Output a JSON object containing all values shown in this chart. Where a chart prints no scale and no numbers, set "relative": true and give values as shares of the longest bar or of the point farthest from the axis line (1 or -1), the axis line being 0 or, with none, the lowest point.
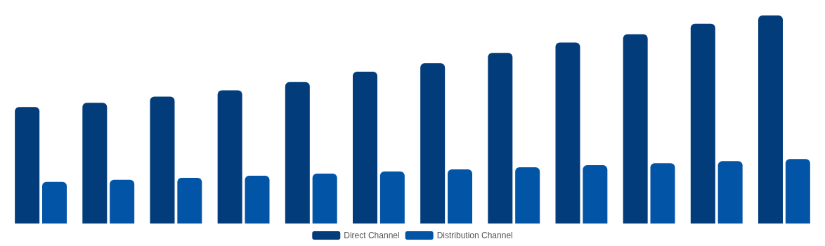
{
  "chart_data": {
    "type": "bar",
    "relative": true,
    "categories": [
      null,
      null,
      null,
      null,
      null,
      null,
      null,
      null,
      null,
      null,
      null,
      null
    ],
    "series": [
      {
        "name": "Direct Channel",
        "color": "#023c7a",
        "values": [
          0.56,
          0.58,
          0.61,
          0.64,
          0.68,
          0.73,
          0.77,
          0.82,
          0.87,
          0.91,
          0.96,
          1
        ]
      },
      {
        "name": "Distribution Channel",
        "color": "#0254a6",
        "values": [
          0.2,
          0.21,
          0.22,
          0.23,
          0.24,
          0.25,
          0.26,
          0.27,
          0.28,
          0.29,
          0.3,
          0.31
        ]
      }
    ],
    "legend": "bottom"
  }
}
